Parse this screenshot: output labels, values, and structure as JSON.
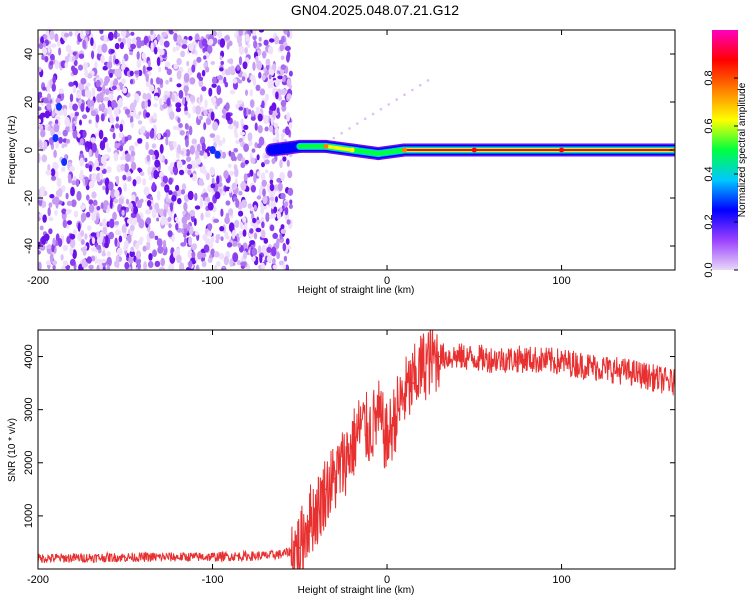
{
  "title": "GN04.2025.048.07.21.G12",
  "chart_data": [
    {
      "type": "heatmap",
      "xlabel": "Height of straight line (km)",
      "ylabel": "Frequency (Hz)",
      "xlim": [
        -200,
        165
      ],
      "ylim": [
        -50,
        50
      ],
      "xticks": [
        -200,
        -100,
        0,
        100
      ],
      "yticks": [
        -40,
        -20,
        0,
        20,
        40
      ],
      "colorbar": {
        "label": "Normalized spectral amplitude",
        "range": [
          0,
          1
        ],
        "ticks": [
          0.0,
          0.2,
          0.4,
          0.6,
          0.8
        ],
        "colors": [
          "#e8d8f8",
          "#9a40ff",
          "#0000ff",
          "#00c8ff",
          "#00ff40",
          "#ffff00",
          "#ff8000",
          "#ff0000",
          "#ff00c0"
        ]
      },
      "noise_region": {
        "x": [
          -200,
          -55
        ],
        "y": [
          -50,
          50
        ]
      },
      "signal_track": [
        {
          "x": -66,
          "y": 0,
          "amplitude": 0.35
        },
        {
          "x": -50,
          "y": 1.5,
          "amplitude": 0.6
        },
        {
          "x": -35,
          "y": 1.5,
          "amplitude": 0.8
        },
        {
          "x": -20,
          "y": 0,
          "amplitude": 0.7
        },
        {
          "x": -5,
          "y": -1.5,
          "amplitude": 0.65
        },
        {
          "x": 10,
          "y": 0,
          "amplitude": 0.9
        },
        {
          "x": 50,
          "y": 0,
          "amplitude": 0.95
        },
        {
          "x": 100,
          "y": 0,
          "amplitude": 0.95
        },
        {
          "x": 165,
          "y": 0,
          "amplitude": 0.9
        }
      ]
    },
    {
      "type": "line",
      "xlabel": "Height of straight line (km)",
      "ylabel": "SNR (10 * v/v)",
      "xlim": [
        -200,
        165
      ],
      "ylim": [
        0,
        4500
      ],
      "xticks": [
        -200,
        -100,
        0,
        100
      ],
      "yticks": [
        1000,
        2000,
        3000,
        4000
      ],
      "color": "#e83030",
      "series": [
        {
          "x": [
            -200,
            -150,
            -100,
            -70,
            -60,
            -50,
            -45,
            -40,
            -35,
            -30,
            -25,
            -20,
            -15,
            -10,
            -5,
            0,
            5,
            10,
            15,
            20,
            25,
            30,
            40,
            60,
            80,
            100,
            120,
            140,
            165
          ],
          "y": [
            200,
            220,
            230,
            250,
            280,
            400,
            900,
            1100,
            1500,
            1700,
            2000,
            2300,
            2700,
            2600,
            2900,
            2400,
            2900,
            3300,
            3500,
            3800,
            3950,
            4000,
            4000,
            3950,
            3950,
            3900,
            3800,
            3700,
            3500
          ]
        }
      ]
    }
  ]
}
